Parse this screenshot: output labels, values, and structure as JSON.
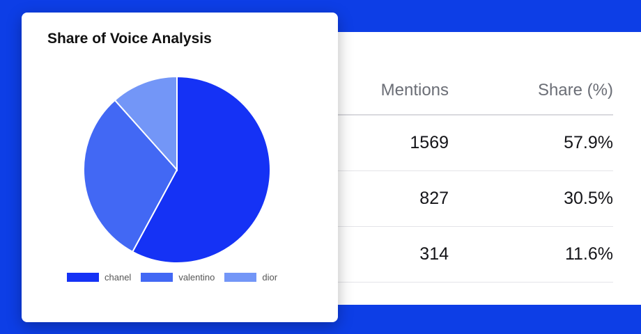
{
  "table": {
    "headers": [
      "Mentions",
      "Share (%)"
    ],
    "rows": [
      {
        "mentions": "1569",
        "share": "57.9%"
      },
      {
        "mentions": "827",
        "share": "30.5%"
      },
      {
        "mentions": "314",
        "share": "11.6%"
      }
    ]
  },
  "chart_data": {
    "type": "pie",
    "title": "Share of Voice Analysis",
    "categories": [
      "chanel",
      "valentino",
      "dior"
    ],
    "values": [
      1569,
      827,
      314
    ],
    "colors": [
      "#1532f5",
      "#4268f4",
      "#7396f7"
    ],
    "legend_position": "bottom"
  }
}
